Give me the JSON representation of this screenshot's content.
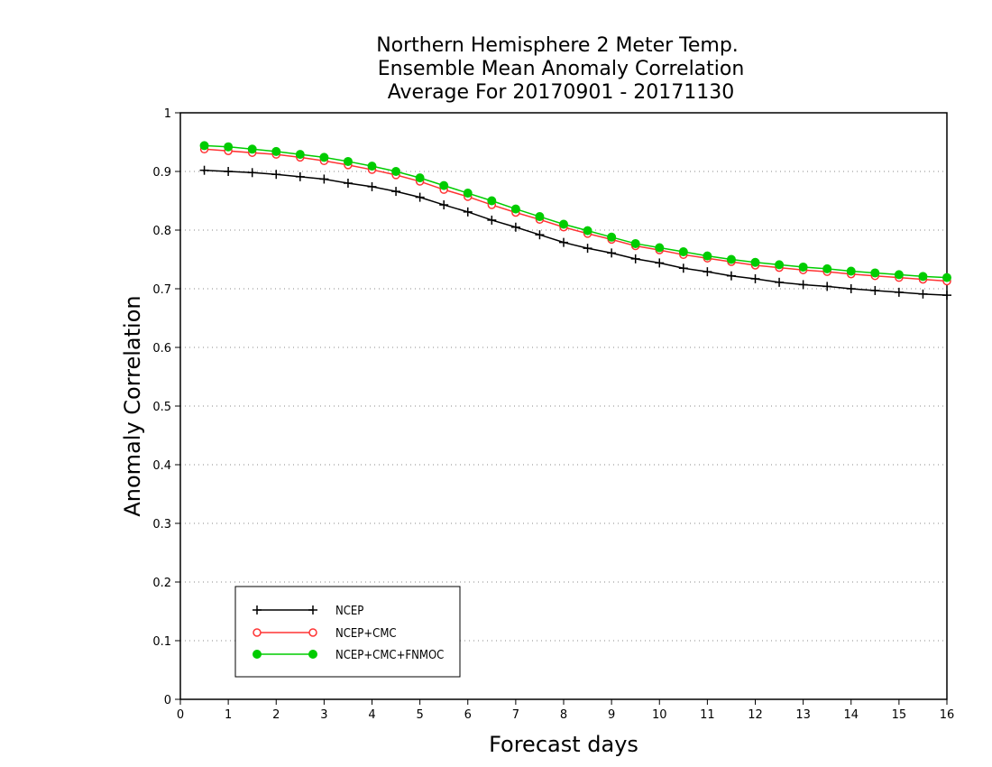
{
  "chart_data": {
    "type": "line",
    "title_lines": [
      "Northern Hemisphere 2 Meter Temp.",
      "Ensemble Mean Anomaly Correlation",
      "Average For 20170901 - 20171130"
    ],
    "xlabel": "Forecast days",
    "ylabel": "Anomaly Correlation",
    "xlim": [
      0,
      16
    ],
    "ylim": [
      0,
      1
    ],
    "x_ticks": [
      "0",
      "1",
      "2",
      "3",
      "4",
      "5",
      "6",
      "7",
      "8",
      "9",
      "10",
      "11",
      "12",
      "13",
      "14",
      "15",
      "16"
    ],
    "y_ticks": [
      "0",
      "0.1",
      "0.2",
      "0.3",
      "0.4",
      "0.5",
      "0.6",
      "0.7",
      "0.8",
      "0.9",
      "1"
    ],
    "grid": "horizontal dotted",
    "legend_position": "bottom-left",
    "x": [
      0.5,
      1,
      1.5,
      2,
      2.5,
      3,
      3.5,
      4,
      4.5,
      5,
      5.5,
      6,
      6.5,
      7,
      7.5,
      8,
      8.5,
      9,
      9.5,
      10,
      10.5,
      11,
      11.5,
      12,
      12.5,
      13,
      13.5,
      14,
      14.5,
      15,
      15.5,
      16
    ],
    "series": [
      {
        "name": "NCEP",
        "color": "#000000",
        "marker": "plus",
        "values": [
          0.902,
          0.9,
          0.898,
          0.895,
          0.891,
          0.887,
          0.88,
          0.874,
          0.866,
          0.856,
          0.843,
          0.831,
          0.817,
          0.805,
          0.792,
          0.779,
          0.769,
          0.761,
          0.751,
          0.744,
          0.735,
          0.729,
          0.722,
          0.717,
          0.711,
          0.707,
          0.704,
          0.7,
          0.697,
          0.694,
          0.691,
          0.689
        ]
      },
      {
        "name": "NCEP+CMC",
        "color": "#ff3333",
        "marker": "open-circle",
        "values": [
          0.938,
          0.935,
          0.932,
          0.929,
          0.924,
          0.918,
          0.911,
          0.903,
          0.894,
          0.883,
          0.869,
          0.857,
          0.843,
          0.83,
          0.818,
          0.805,
          0.794,
          0.784,
          0.773,
          0.766,
          0.758,
          0.752,
          0.746,
          0.74,
          0.736,
          0.732,
          0.729,
          0.725,
          0.722,
          0.719,
          0.716,
          0.713
        ]
      },
      {
        "name": "NCEP+CMC+FNMOC",
        "color": "#00cc00",
        "marker": "filled-circle",
        "values": [
          0.944,
          0.942,
          0.938,
          0.934,
          0.929,
          0.924,
          0.917,
          0.909,
          0.9,
          0.889,
          0.876,
          0.863,
          0.85,
          0.836,
          0.823,
          0.81,
          0.799,
          0.788,
          0.777,
          0.77,
          0.763,
          0.756,
          0.75,
          0.745,
          0.741,
          0.737,
          0.734,
          0.73,
          0.727,
          0.724,
          0.721,
          0.719
        ]
      }
    ]
  }
}
